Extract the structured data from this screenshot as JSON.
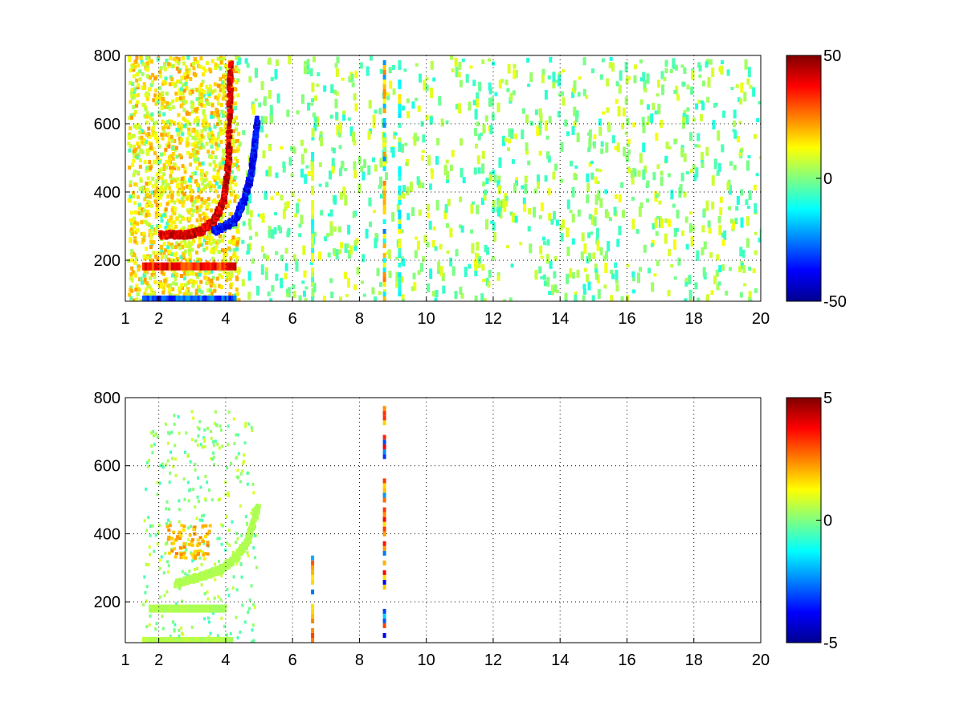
{
  "chart_data": [
    {
      "type": "heatmap",
      "title": "",
      "xlabel": "",
      "ylabel": "",
      "xlim": [
        1,
        20
      ],
      "ylim": [
        80,
        800
      ],
      "grid": true,
      "x_ticks": [
        "1",
        "2",
        "4",
        "6",
        "8",
        "10",
        "12",
        "14",
        "16",
        "18",
        "20"
      ],
      "y_ticks": [
        "200",
        "400",
        "600",
        "800"
      ],
      "colorbar": {
        "colormap": "jet",
        "range": [
          -50,
          50
        ],
        "ticks": [
          "50",
          "0",
          "-50"
        ]
      },
      "features": [
        {
          "kind": "curve",
          "x": [
            2.0,
            2.8,
            3.2,
            3.6,
            3.9,
            4.05,
            4.1
          ],
          "y": [
            280,
            280,
            290,
            320,
            380,
            500,
            780
          ],
          "value": 45
        },
        {
          "kind": "curve",
          "x": [
            3.6,
            4.2,
            4.5,
            4.7,
            4.8,
            4.9
          ],
          "y": [
            290,
            320,
            380,
            450,
            520,
            620
          ],
          "value": -40
        },
        {
          "kind": "hband",
          "x": [
            1.5,
            4.3
          ],
          "y": 182,
          "value": 40
        },
        {
          "kind": "hband",
          "x": [
            1.5,
            4.3
          ],
          "y": 85,
          "value": -35
        },
        {
          "kind": "vline",
          "x": 6.6,
          "y": [
            80,
            560
          ],
          "value": 10
        },
        {
          "kind": "vline",
          "x": 8.75,
          "y": [
            80,
            800
          ],
          "value": 20
        },
        {
          "kind": "vline",
          "x": 9.2,
          "y": [
            80,
            800
          ],
          "value": -12
        }
      ]
    },
    {
      "type": "heatmap",
      "title": "",
      "xlabel": "",
      "ylabel": "",
      "xlim": [
        1,
        20
      ],
      "ylim": [
        80,
        800
      ],
      "grid": true,
      "x_ticks": [
        "1",
        "2",
        "4",
        "6",
        "8",
        "10",
        "12",
        "14",
        "16",
        "18",
        "20"
      ],
      "y_ticks": [
        "200",
        "400",
        "600",
        "800"
      ],
      "colorbar": {
        "colormap": "jet",
        "range": [
          -5,
          5
        ],
        "ticks": [
          "5",
          "0",
          "-5"
        ]
      },
      "features": [
        {
          "kind": "curve",
          "x": [
            2.5,
            3.2,
            3.8,
            4.2,
            4.6,
            4.9
          ],
          "y": [
            260,
            280,
            300,
            330,
            380,
            480
          ],
          "value": 0.5
        },
        {
          "kind": "cluster",
          "x": [
            2.2,
            3.5
          ],
          "y": [
            330,
            430
          ],
          "value": 2.3
        },
        {
          "kind": "hband",
          "x": [
            1.5,
            4.2
          ],
          "y": 85,
          "value": 0.6
        },
        {
          "kind": "hband",
          "x": [
            1.7,
            4.0
          ],
          "y": 180,
          "value": 0.5
        },
        {
          "kind": "vline",
          "x": 6.6,
          "y": [
            80,
            350
          ],
          "value": 2.5
        },
        {
          "kind": "vline",
          "x": 8.75,
          "y": [
            80,
            790
          ],
          "value": 3
        }
      ]
    }
  ]
}
